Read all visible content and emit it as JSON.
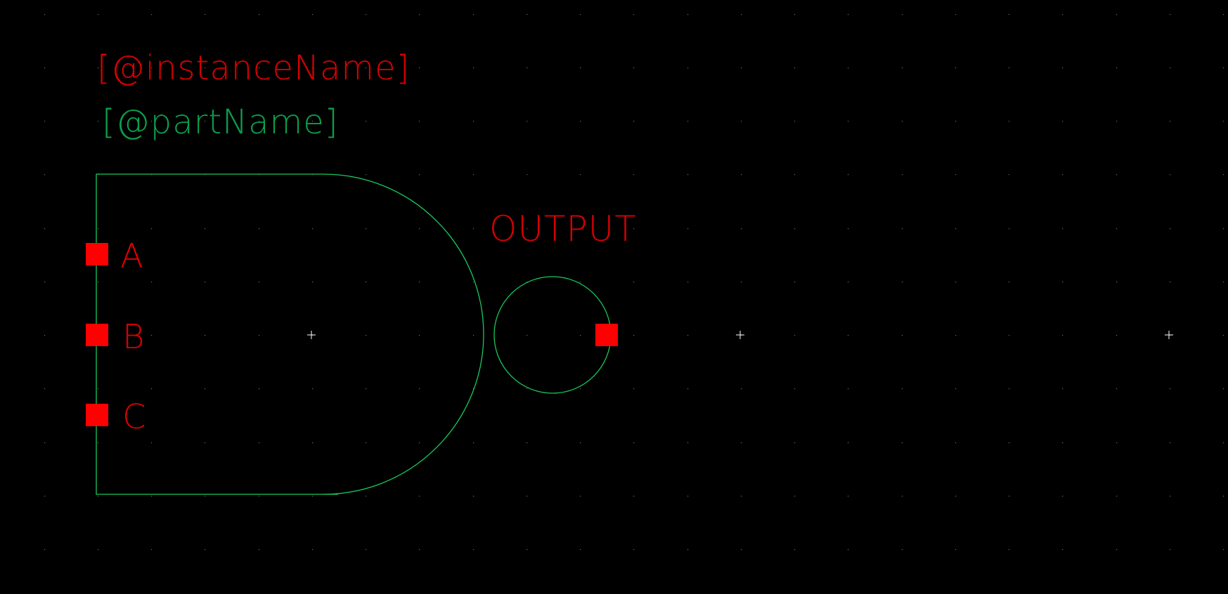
{
  "symbol": {
    "instance_name_label": "[@instanceName]",
    "part_name_label": "[@partName]",
    "output_label": "OUTPUT",
    "pins": [
      {
        "name": "A"
      },
      {
        "name": "B"
      },
      {
        "name": "C"
      }
    ]
  },
  "colors": {
    "background": "#000000",
    "grid_dot": "#6e6e6e",
    "origin_cross": "#ffffff",
    "body_outline": "#18c95a",
    "label_red": "#d60000",
    "label_green": "#0c9e4a",
    "pin_fill": "#ff0000"
  },
  "icons": {
    "body": "nand-gate-body-icon",
    "bubble": "inversion-bubble-icon",
    "pin": "pin-square-icon",
    "origin": "origin-cross-icon"
  }
}
